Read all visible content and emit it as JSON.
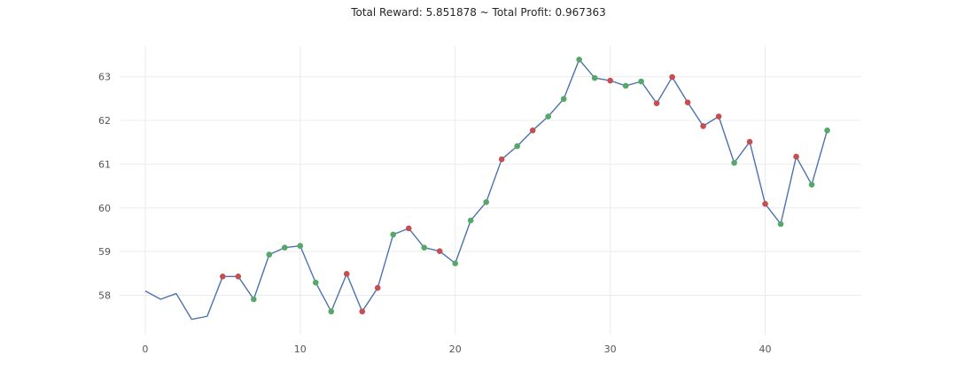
{
  "chart_data": {
    "type": "line",
    "title": "Total Reward: 5.851878 ~ Total Profit: 0.967363",
    "xlabel": "",
    "ylabel": "",
    "xlim": [
      -1.65,
      46.2
    ],
    "ylim": [
      57.1,
      63.7
    ],
    "x_ticks": [
      0,
      10,
      20,
      30,
      40
    ],
    "y_ticks": [
      58,
      59,
      60,
      61,
      62,
      63
    ],
    "grid": true,
    "series": [
      {
        "x": [
          0,
          1,
          2,
          3,
          4,
          5,
          6,
          7,
          8,
          9,
          10,
          11,
          12,
          13,
          14,
          15,
          16,
          17,
          18,
          19,
          20,
          21,
          22,
          23,
          24,
          25,
          26,
          27,
          28,
          29,
          30,
          31,
          32,
          33,
          34,
          35,
          36,
          37,
          38,
          39,
          40,
          41,
          42,
          43,
          44
        ],
        "values": [
          58.1,
          57.91,
          58.04,
          57.45,
          57.52,
          58.43,
          58.43,
          57.91,
          58.93,
          59.09,
          59.13,
          58.29,
          57.63,
          58.49,
          57.63,
          58.17,
          59.39,
          59.53,
          59.09,
          59.01,
          58.73,
          59.71,
          60.13,
          61.11,
          61.41,
          61.77,
          62.09,
          62.49,
          63.39,
          62.97,
          62.91,
          62.79,
          62.89,
          62.39,
          62.99,
          62.41,
          61.87,
          62.09,
          61.03,
          61.51,
          60.09,
          59.63,
          61.17,
          60.53,
          61.77
        ],
        "color": "#4c72b0"
      }
    ],
    "markers": {
      "buy": {
        "color": "#55a868",
        "x": [
          7,
          8,
          9,
          10,
          11,
          12,
          16,
          18,
          20,
          21,
          22,
          24,
          26,
          27,
          28,
          29,
          31,
          32,
          38,
          41,
          43,
          44
        ]
      },
      "sell": {
        "color": "#c44e52",
        "x": [
          5,
          6,
          13,
          14,
          15,
          17,
          19,
          23,
          25,
          30,
          33,
          34,
          35,
          36,
          37,
          39,
          40,
          42
        ]
      }
    }
  },
  "colors": {
    "axis_text": "#555555",
    "grid": "#ebebeb",
    "title": "#262626"
  }
}
